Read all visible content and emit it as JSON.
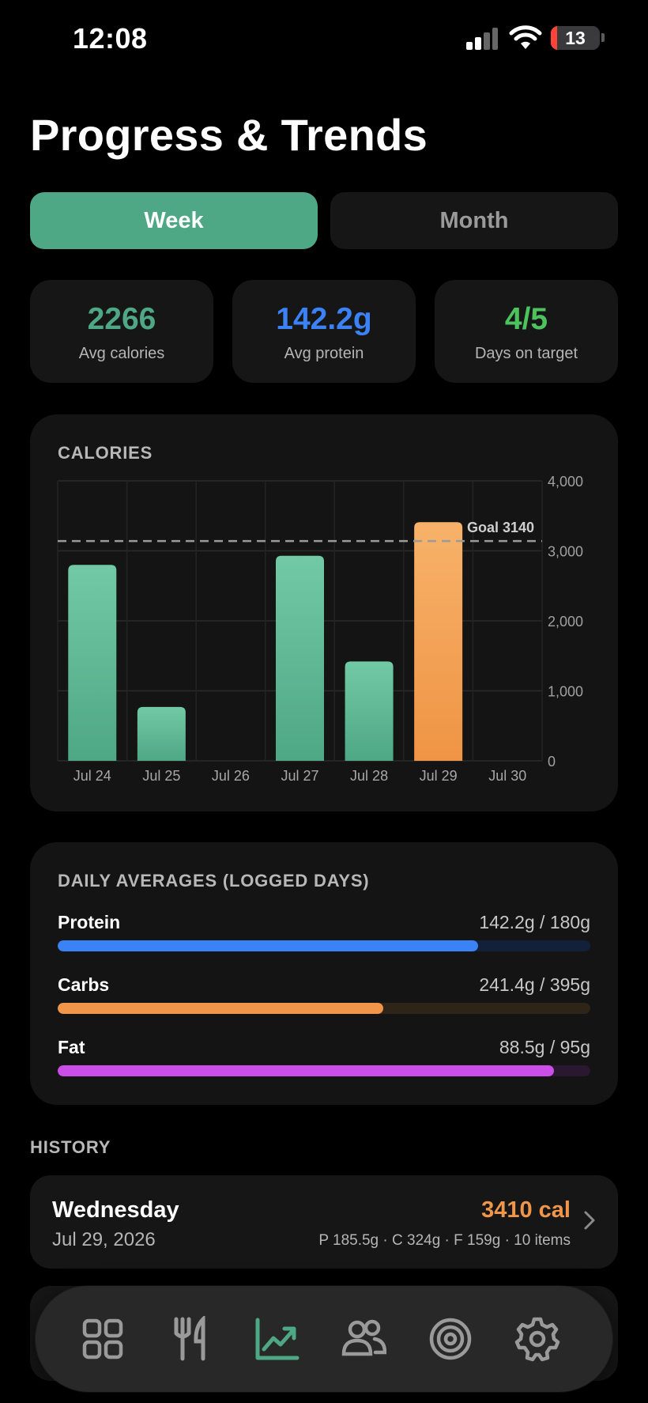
{
  "status_bar": {
    "time": "12:08",
    "battery": "13"
  },
  "page": {
    "title": "Progress & Trends"
  },
  "segmented": {
    "week_label": "Week",
    "month_label": "Month",
    "selected": "Week"
  },
  "stats": [
    {
      "value": "2266",
      "label": "Avg calories",
      "color": "#4ea785"
    },
    {
      "value": "142.2g",
      "label": "Avg protein",
      "color": "#3b82f6"
    },
    {
      "value": "4/5",
      "label": "Days on target",
      "color": "#4cc35d"
    }
  ],
  "calories_card": {
    "title": "CALORIES",
    "goal_label": "Goal 3140"
  },
  "chart_data": {
    "type": "bar",
    "title": "CALORIES",
    "categories": [
      "Jul 24",
      "Jul 25",
      "Jul 26",
      "Jul 27",
      "Jul 28",
      "Jul 29",
      "Jul 30"
    ],
    "values": [
      2800,
      770,
      0,
      2930,
      1420,
      3410,
      0
    ],
    "goal": 3140,
    "ylim": [
      0,
      4000
    ],
    "yticks": [
      "4,000",
      "3,000",
      "2,000",
      "1,000",
      "0"
    ],
    "ytick_values": [
      4000,
      3000,
      2000,
      1000,
      0
    ],
    "grid": true,
    "colors": {
      "under_goal": "#5dbb96",
      "over_goal": "#f5a456"
    }
  },
  "averages": {
    "title": "DAILY AVERAGES (LOGGED DAYS)",
    "items": [
      {
        "name": "Protein",
        "value": "142.2g / 180g",
        "fraction": 0.79,
        "color": "#3b82f6",
        "track": "#12203a"
      },
      {
        "name": "Carbs",
        "value": "241.4g / 395g",
        "fraction": 0.611,
        "color": "#f0964a",
        "track": "#2e2418"
      },
      {
        "name": "Fat",
        "value": "88.5g / 95g",
        "fraction": 0.932,
        "color": "#cc4ee8",
        "track": "#2a1730"
      }
    ]
  },
  "history": {
    "title": "HISTORY",
    "entries": [
      {
        "day": "Wednesday",
        "date": "Jul 29, 2026",
        "calories": "3410 cal",
        "macros": "P 185.5g · C 324g · F 159g · 10 items"
      }
    ]
  },
  "tab_bar": {
    "tabs": [
      {
        "icon": "grid-icon",
        "active": false
      },
      {
        "icon": "fork-knife-icon",
        "active": false
      },
      {
        "icon": "chart-line-icon",
        "active": true
      },
      {
        "icon": "people-icon",
        "active": false
      },
      {
        "icon": "target-icon",
        "active": false
      },
      {
        "icon": "gear-icon",
        "active": false
      }
    ],
    "active_color": "#4ea785",
    "inactive_color": "#9a9a9a"
  }
}
